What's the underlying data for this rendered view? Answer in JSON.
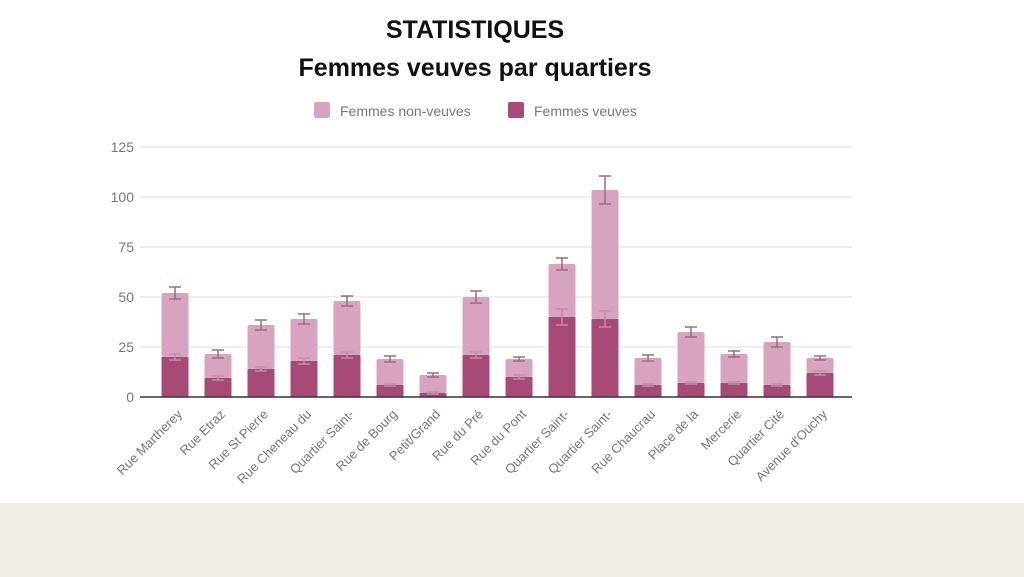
{
  "chart_data": {
    "type": "bar",
    "stacked": true,
    "title": "STATISTIQUES",
    "subtitle": "Femmes veuves par quartiers",
    "xlabel": "",
    "ylabel": "",
    "ylim": [
      0,
      125
    ],
    "yticks": [
      0,
      25,
      50,
      75,
      100,
      125
    ],
    "grid": true,
    "legend_position": "top",
    "categories": [
      "Rue Martherey",
      "Rue Etraz",
      "Rue St Pierre",
      "Rue Cheneau du",
      "Quartier Saint-",
      "Rue de Bourg",
      "Petit/Grand",
      "Rue du Pré",
      "Rue du Pont",
      "Quartier Saint-",
      "Quartier Saint-",
      "Rue Chaucrau",
      "Place de la",
      "Mercerie",
      "Quartier Cité",
      "Avenue d'Ouchy"
    ],
    "series": [
      {
        "name": "Femmes veuves",
        "color": "#a84a78",
        "values": [
          20,
          9.5,
          14,
          18,
          21,
          6,
          2,
          21,
          10,
          40,
          39,
          6,
          7,
          7,
          6,
          12
        ]
      },
      {
        "name": "Femmes non-veuves",
        "color": "#d8a3be",
        "values": [
          32,
          12,
          22,
          21,
          27,
          13,
          9,
          29,
          9,
          26.5,
          64.5,
          13.5,
          25.5,
          14.5,
          21.5,
          7.5
        ]
      }
    ],
    "error_bars": {
      "veuves": [
        1.5,
        1,
        1,
        1.5,
        1.5,
        0.5,
        0.5,
        1.5,
        1,
        4,
        4,
        0.5,
        0.5,
        0.5,
        0.5,
        1
      ],
      "total": [
        3,
        2,
        2.5,
        2.5,
        2.5,
        1.5,
        1,
        3,
        1,
        3,
        7,
        1.5,
        2.5,
        1.5,
        2.5,
        1
      ]
    }
  }
}
